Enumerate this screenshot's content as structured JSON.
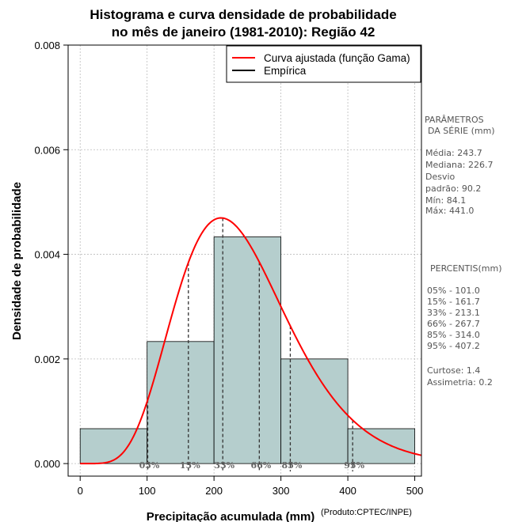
{
  "chart_data": {
    "type": "histogram",
    "title_line1": "Histograma e curva densidade de probabilidade",
    "title_line2": "no mês de janeiro (1981-2010): Região 42",
    "xlabel": "Precipitação acumulada (mm)",
    "ylabel": "Densidade de probabilidade",
    "credit": "(Produto:CPTEC/INPE)",
    "xlim": [
      -18,
      510
    ],
    "ylim": [
      -0.00024,
      0.008
    ],
    "x_ticks": [
      0,
      100,
      200,
      300,
      400,
      500
    ],
    "y_ticks": [
      0.0,
      0.002,
      0.004,
      0.006,
      0.008
    ],
    "y_tick_labels": [
      "0.000",
      "0.002",
      "0.004",
      "0.006",
      "0.008"
    ],
    "grid": true,
    "bins": [
      {
        "start": 0,
        "end": 100,
        "density": 0.000667
      },
      {
        "start": 100,
        "end": 200,
        "density": 0.002333
      },
      {
        "start": 200,
        "end": 300,
        "density": 0.004333
      },
      {
        "start": 300,
        "end": 400,
        "density": 0.002
      },
      {
        "start": 400,
        "end": 500,
        "density": 0.000667
      }
    ],
    "bar_color": "#b5cecd",
    "curve_color": "#ff0000",
    "gamma_fit": {
      "shape": 7.3,
      "scale": 33.4
    },
    "legend": {
      "placement": "top-right",
      "entries": [
        {
          "label": "Curva ajustada (função Gama)",
          "color": "#ff0000"
        },
        {
          "label": "Empírica",
          "color": "#000000"
        }
      ]
    },
    "percentile_markers": [
      {
        "label": "05%",
        "value": 101.0
      },
      {
        "label": "15%",
        "value": 161.7
      },
      {
        "label": "33%",
        "value": 213.1
      },
      {
        "label": "66%",
        "value": 267.7
      },
      {
        "label": "85%",
        "value": 314.0
      },
      {
        "label": "95%",
        "value": 407.2
      }
    ]
  },
  "side_panel": {
    "params_header_1": "PARÂMETROS",
    "params_header_2": "DA SÉRIE (mm)",
    "media": "Média:  243.7",
    "mediana": "Mediana:  226.7",
    "desvio_1": "Desvio",
    "desvio_2": "padrão:  90.2",
    "min": "Mín:  84.1",
    "max": "Máx:  441.0",
    "percentis_header": "PERCENTIS(mm)",
    "percentis": [
      "05% -  101.0",
      "15% -  161.7",
      "33% -  213.1",
      "66% -  267.7",
      "85% -  314.0",
      "95% -  407.2"
    ],
    "curtose": "Curtose:  1.4",
    "assimetria": "Assimetria:  0.2"
  }
}
